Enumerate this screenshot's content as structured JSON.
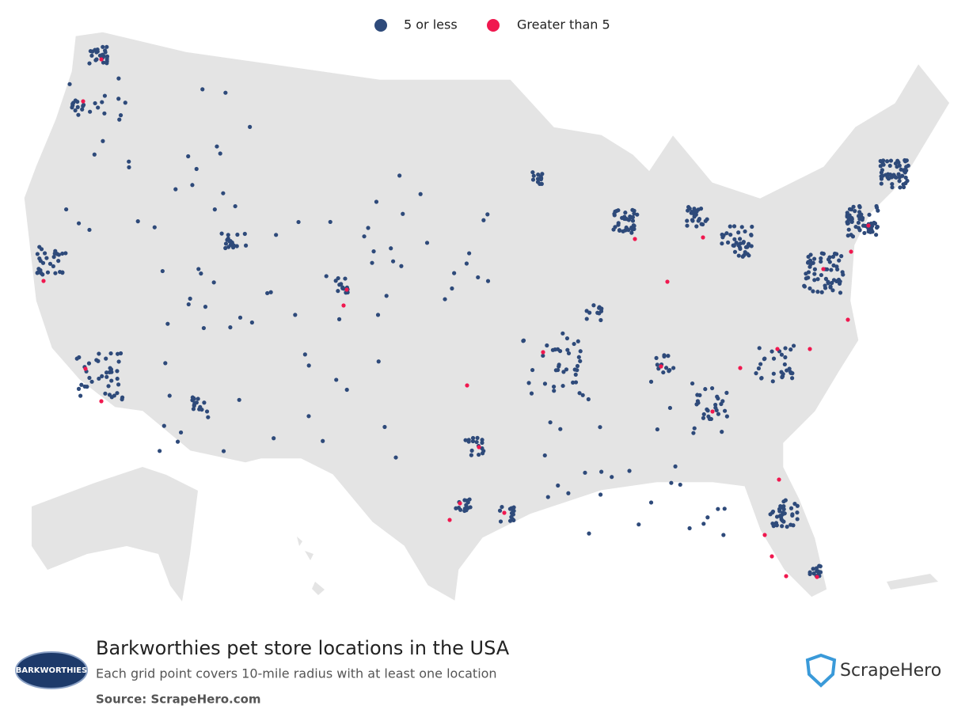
{
  "legend": [
    {
      "name": "5 or less",
      "color": "#2e4a7a"
    },
    {
      "name": "Greater than 5",
      "color": "#f0184f"
    }
  ],
  "footer": {
    "title": "Barkworthies pet store locations in the USA",
    "subtitle": "Each grid point covers 10-mile radius with at least one location",
    "source": "Source: ScrapeHero.com"
  },
  "logos": {
    "brand": "BARKWORTHIES",
    "scrapehero": "ScrapeHero"
  }
}
